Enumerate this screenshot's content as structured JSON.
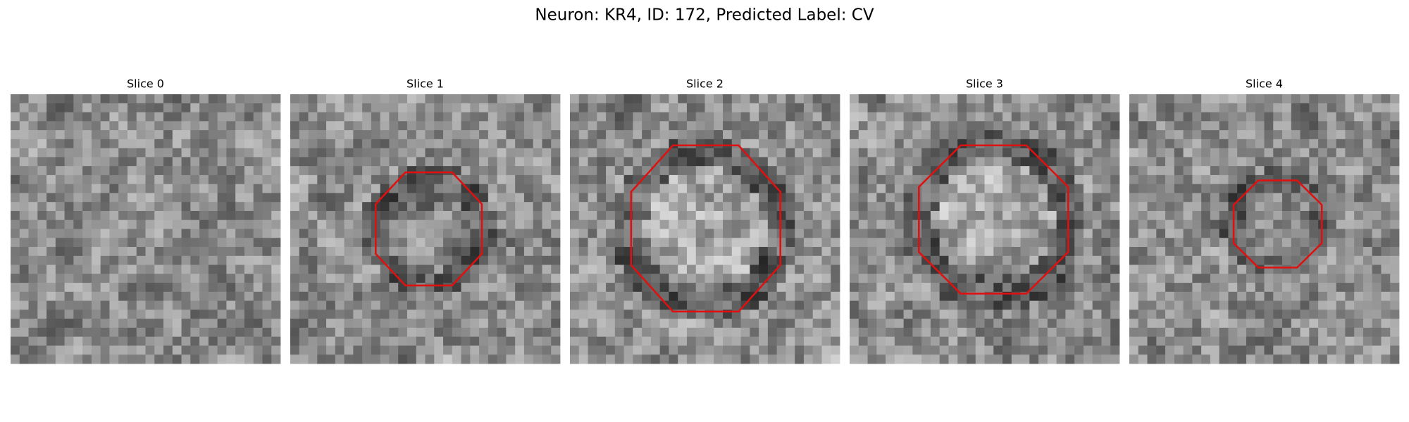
{
  "title": "Neuron: KR4, ID: 172, Predicted Label: CV",
  "panels": [
    {
      "title": "Slice 0"
    },
    {
      "title": "Slice 1"
    },
    {
      "title": "Slice 2"
    },
    {
      "title": "Slice 3"
    },
    {
      "title": "Slice 4"
    }
  ]
}
